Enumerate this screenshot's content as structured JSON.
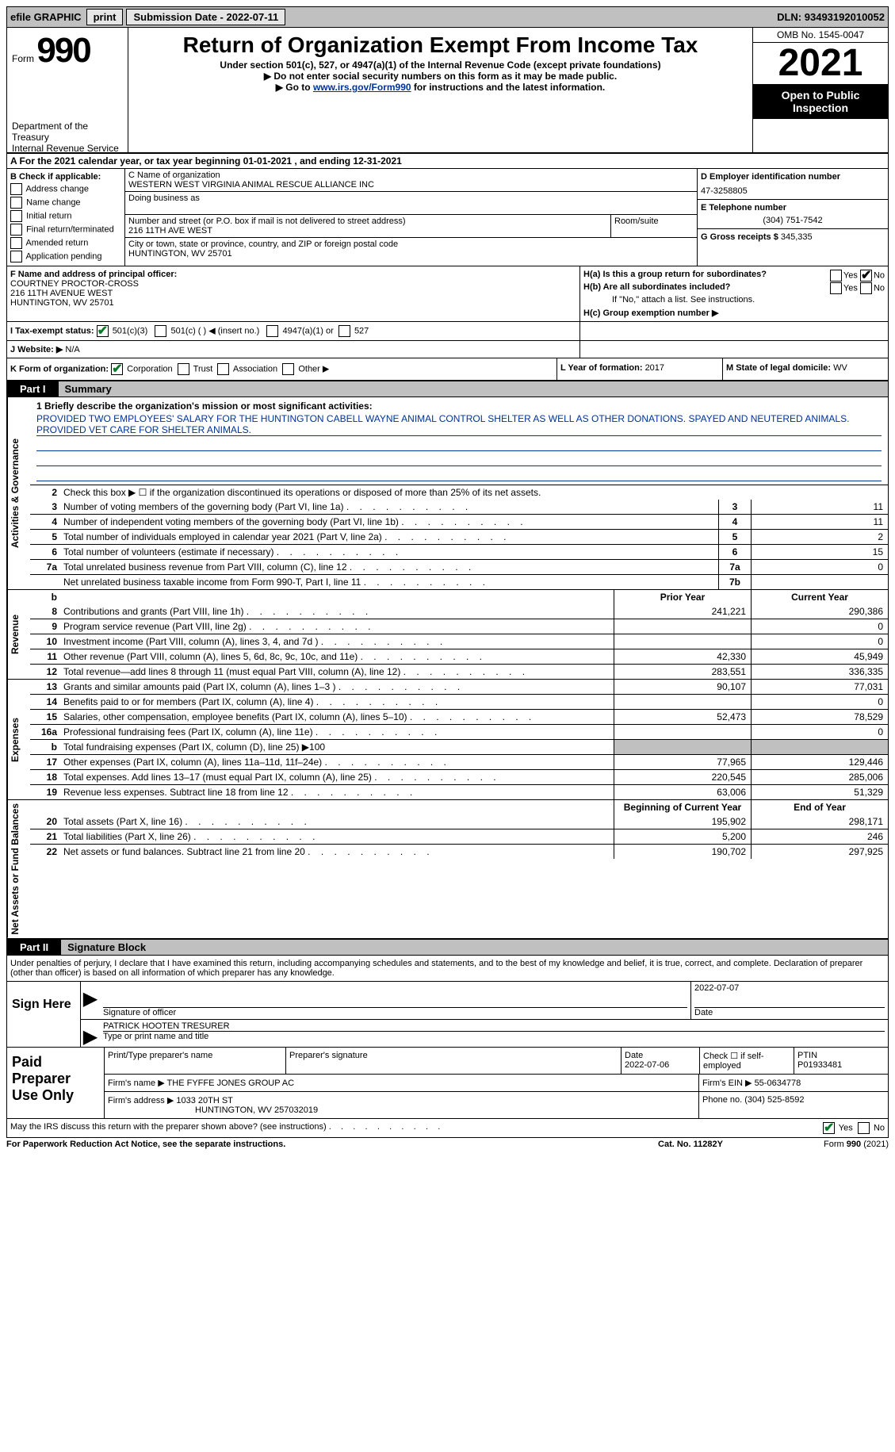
{
  "topbar": {
    "efile": "efile GRAPHIC",
    "print": "print",
    "submission_label": "Submission Date - ",
    "submission_date": "2022-07-11",
    "dln_label": "DLN: ",
    "dln": "93493192010052"
  },
  "header": {
    "form_label": "Form",
    "form_number": "990",
    "title": "Return of Organization Exempt From Income Tax",
    "subtitle": "Under section 501(c), 527, or 4947(a)(1) of the Internal Revenue Code (except private foundations)",
    "ssn_note": "▶ Do not enter social security numbers on this form as it may be made public.",
    "goto_prefix": "▶ Go to ",
    "goto_link": "www.irs.gov/Form990",
    "goto_suffix": " for instructions and the latest information.",
    "dept": "Department of the Treasury",
    "irs": "Internal Revenue Service",
    "omb": "OMB No. 1545-0047",
    "year": "2021",
    "open": "Open to Public Inspection"
  },
  "period": {
    "line_a": "A For the 2021 calendar year, or tax year beginning ",
    "begin": "01-01-2021",
    "mid": " , and ending ",
    "end": "12-31-2021"
  },
  "block_b": {
    "label": "B Check if applicable:",
    "address_change": "Address change",
    "name_change": "Name change",
    "initial_return": "Initial return",
    "final_return": "Final return/terminated",
    "amended": "Amended return",
    "app_pending": "Application pending"
  },
  "block_c": {
    "name_label": "C Name of organization",
    "name": "WESTERN WEST VIRGINIA ANIMAL RESCUE ALLIANCE INC",
    "dba_label": "Doing business as",
    "street_label": "Number and street (or P.O. box if mail is not delivered to street address)",
    "street": "216 11TH AVE WEST",
    "room_label": "Room/suite",
    "city_label": "City or town, state or province, country, and ZIP or foreign postal code",
    "city": "HUNTINGTON, WV  25701"
  },
  "block_d": {
    "ein_label": "D Employer identification number",
    "ein": "47-3258805",
    "phone_label": "E Telephone number",
    "phone": "(304) 751-7542",
    "gross_label": "G Gross receipts $ ",
    "gross": "345,335"
  },
  "block_f": {
    "label": "F Name and address of principal officer:",
    "name": "COURTNEY PROCTOR-CROSS",
    "street": "216 11TH AVENUE WEST",
    "city": "HUNTINGTON, WV  25701"
  },
  "block_h": {
    "ha": "H(a)  Is this a group return for subordinates?",
    "hb": "H(b)  Are all subordinates included?",
    "hb_note": "If \"No,\" attach a list. See instructions.",
    "hc": "H(c)  Group exemption number ▶",
    "yes": "Yes",
    "no": "No"
  },
  "block_i": {
    "label": "I    Tax-exempt status:",
    "c3": "501(c)(3)",
    "c": "501(c) (  ) ◀ (insert no.)",
    "a4947": "4947(a)(1) or",
    "s527": "527"
  },
  "block_j": {
    "label": "J    Website: ▶",
    "value": "N/A"
  },
  "block_k": {
    "label": "K Form of organization:",
    "corp": "Corporation",
    "trust": "Trust",
    "assoc": "Association",
    "other": "Other ▶",
    "l_label": "L Year of formation: ",
    "l_val": "2017",
    "m_label": "M State of legal domicile: ",
    "m_val": "WV"
  },
  "part1": {
    "tab": "Part I",
    "title": "Summary",
    "vtab_gov": "Activities & Governance",
    "vtab_rev": "Revenue",
    "vtab_exp": "Expenses",
    "vtab_net": "Net Assets or Fund Balances",
    "line1_label": "1  Briefly describe the organization's mission or most significant activities:",
    "mission": "PROVIDED TWO EMPLOYEES' SALARY FOR THE HUNTINGTON CABELL WAYNE ANIMAL CONTROL SHELTER AS WELL AS OTHER DONATIONS. SPAYED AND NEUTERED ANIMALS. PROVIDED VET CARE FOR SHELTER ANIMALS.",
    "line2": "Check this box ▶ ☐ if the organization discontinued its operations or disposed of more than 25% of its net assets.",
    "rows_gov": [
      {
        "n": "3",
        "d": "Number of voting members of the governing body (Part VI, line 1a)",
        "box": "3",
        "v2": "11"
      },
      {
        "n": "4",
        "d": "Number of independent voting members of the governing body (Part VI, line 1b)",
        "box": "4",
        "v2": "11"
      },
      {
        "n": "5",
        "d": "Total number of individuals employed in calendar year 2021 (Part V, line 2a)",
        "box": "5",
        "v2": "2"
      },
      {
        "n": "6",
        "d": "Total number of volunteers (estimate if necessary)",
        "box": "6",
        "v2": "15"
      },
      {
        "n": "7a",
        "d": "Total unrelated business revenue from Part VIII, column (C), line 12",
        "box": "7a",
        "v2": "0"
      },
      {
        "n": "  ",
        "d": "Net unrelated business taxable income from Form 990-T, Part I, line 11",
        "box": "7b",
        "v2": ""
      }
    ],
    "header_prior": "Prior Year",
    "header_current": "Current Year",
    "rows_rev": [
      {
        "n": "8",
        "d": "Contributions and grants (Part VIII, line 1h)",
        "v1": "241,221",
        "v2": "290,386"
      },
      {
        "n": "9",
        "d": "Program service revenue (Part VIII, line 2g)",
        "v1": "",
        "v2": "0"
      },
      {
        "n": "10",
        "d": "Investment income (Part VIII, column (A), lines 3, 4, and 7d )",
        "v1": "",
        "v2": "0"
      },
      {
        "n": "11",
        "d": "Other revenue (Part VIII, column (A), lines 5, 6d, 8c, 9c, 10c, and 11e)",
        "v1": "42,330",
        "v2": "45,949"
      },
      {
        "n": "12",
        "d": "Total revenue—add lines 8 through 11 (must equal Part VIII, column (A), line 12)",
        "v1": "283,551",
        "v2": "336,335"
      }
    ],
    "rows_exp": [
      {
        "n": "13",
        "d": "Grants and similar amounts paid (Part IX, column (A), lines 1–3 )",
        "v1": "90,107",
        "v2": "77,031"
      },
      {
        "n": "14",
        "d": "Benefits paid to or for members (Part IX, column (A), line 4)",
        "v1": "",
        "v2": "0"
      },
      {
        "n": "15",
        "d": "Salaries, other compensation, employee benefits (Part IX, column (A), lines 5–10)",
        "v1": "52,473",
        "v2": "78,529"
      },
      {
        "n": "16a",
        "d": "Professional fundraising fees (Part IX, column (A), line 11e)",
        "v1": "",
        "v2": "0"
      },
      {
        "n": "b",
        "d": "Total fundraising expenses (Part IX, column (D), line 25) ▶100",
        "v1": "—shaded—",
        "v2": "—shaded—"
      },
      {
        "n": "17",
        "d": "Other expenses (Part IX, column (A), lines 11a–11d, 11f–24e)",
        "v1": "77,965",
        "v2": "129,446"
      },
      {
        "n": "18",
        "d": "Total expenses. Add lines 13–17 (must equal Part IX, column (A), line 25)",
        "v1": "220,545",
        "v2": "285,006"
      },
      {
        "n": "19",
        "d": "Revenue less expenses. Subtract line 18 from line 12",
        "v1": "63,006",
        "v2": "51,329"
      }
    ],
    "header_begin": "Beginning of Current Year",
    "header_end": "End of Year",
    "rows_net": [
      {
        "n": "20",
        "d": "Total assets (Part X, line 16)",
        "v1": "195,902",
        "v2": "298,171"
      },
      {
        "n": "21",
        "d": "Total liabilities (Part X, line 26)",
        "v1": "5,200",
        "v2": "246"
      },
      {
        "n": "22",
        "d": "Net assets or fund balances. Subtract line 21 from line 20",
        "v1": "190,702",
        "v2": "297,925"
      }
    ]
  },
  "part2": {
    "tab": "Part II",
    "title": "Signature Block",
    "penalties": "Under penalties of perjury, I declare that I have examined this return, including accompanying schedules and statements, and to the best of my knowledge and belief, it is true, correct, and complete. Declaration of preparer (other than officer) is based on all information of which preparer has any knowledge.",
    "sign_here": "Sign Here",
    "sig_officer_label": "Signature of officer",
    "sig_date": "2022-07-07",
    "date_label": "Date",
    "officer_name": "PATRICK HOOTEN  TRESURER",
    "officer_type_label": "Type or print name and title",
    "paid_label": "Paid Preparer Use Only",
    "prep_name_label": "Print/Type preparer's name",
    "prep_sig_label": "Preparer's signature",
    "prep_date_label": "Date",
    "prep_date": "2022-07-06",
    "self_emp": "Check ☐ if self-employed",
    "ptin_label": "PTIN",
    "ptin": "P01933481",
    "firm_name_label": "Firm's name    ▶ ",
    "firm_name": "THE FYFFE JONES GROUP AC",
    "firm_ein_label": "Firm's EIN ▶ ",
    "firm_ein": "55-0634778",
    "firm_addr_label": "Firm's address ▶ ",
    "firm_addr": "1033 20TH ST",
    "firm_city": "HUNTINGTON, WV  257032019",
    "phone_label": "Phone no. ",
    "phone": "(304) 525-8592",
    "discuss": "May the IRS discuss this return with the preparer shown above? (see instructions)",
    "yes": "Yes",
    "no": "No"
  },
  "footer": {
    "pra": "For Paperwork Reduction Act Notice, see the separate instructions.",
    "cat": "Cat. No. 11282Y",
    "form": "Form 990 (2021)"
  }
}
